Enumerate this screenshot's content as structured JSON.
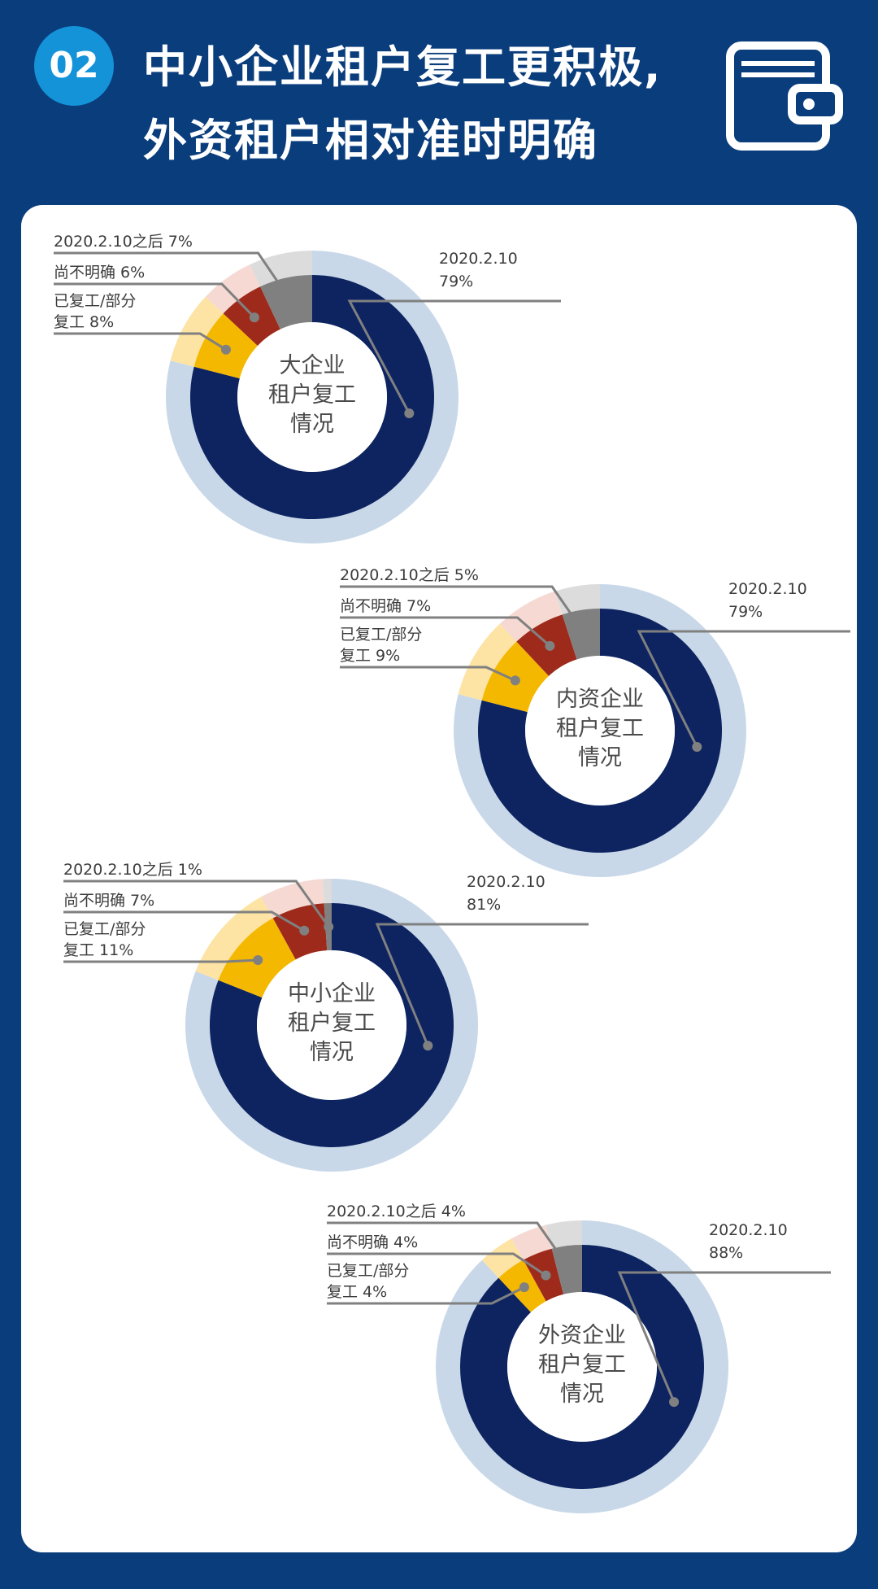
{
  "header": {
    "badge": "02",
    "title_line1": "中小企业租户复工更积极,",
    "title_line2": "外资租户相对准时明确",
    "icon": "wallet-icon"
  },
  "colors": {
    "background": "#0a3d7c",
    "badge": "#1493d9",
    "outer_ring": "#c8d8e8",
    "on_time": "#0d2461",
    "back_to_work": "#f5b800",
    "unclear": "#9e2a1c",
    "after": "#808080",
    "back_to_work_light": "#fde3a4",
    "unclear_light": "#f5d9d2",
    "after_light": "#dcdcdc",
    "leader_line": "#808080"
  },
  "chart_data": [
    {
      "type": "pie",
      "center_label": [
        "大企业",
        "租户复工",
        "情况"
      ],
      "categories": [
        "2020.2.10",
        "已复工/部分复工",
        "尚不明确",
        "2020.2.10之后"
      ],
      "values": [
        79,
        8,
        6,
        7
      ],
      "labels": {
        "main_name": "2020.2.10",
        "main_value": "79%",
        "work_line1": "已复工/部分",
        "work_line2": "复工 8%",
        "unclear": "尚不明确 6%",
        "after": "2020.2.10之后 7%"
      }
    },
    {
      "type": "pie",
      "center_label": [
        "内资企业",
        "租户复工",
        "情况"
      ],
      "categories": [
        "2020.2.10",
        "已复工/部分复工",
        "尚不明确",
        "2020.2.10之后"
      ],
      "values": [
        79,
        9,
        7,
        5
      ],
      "labels": {
        "main_name": "2020.2.10",
        "main_value": "79%",
        "work_line1": "已复工/部分",
        "work_line2": "复工 9%",
        "unclear": "尚不明确 7%",
        "after": "2020.2.10之后 5%"
      }
    },
    {
      "type": "pie",
      "center_label": [
        "中小企业",
        "租户复工",
        "情况"
      ],
      "categories": [
        "2020.2.10",
        "已复工/部分复工",
        "尚不明确",
        "2020.2.10之后"
      ],
      "values": [
        81,
        11,
        7,
        1
      ],
      "labels": {
        "main_name": "2020.2.10",
        "main_value": "81%",
        "work_line1": "已复工/部分",
        "work_line2": "复工 11%",
        "unclear": "尚不明确 7%",
        "after": "2020.2.10之后 1%"
      }
    },
    {
      "type": "pie",
      "center_label": [
        "外资企业",
        "租户复工",
        "情况"
      ],
      "categories": [
        "2020.2.10",
        "已复工/部分复工",
        "尚不明确",
        "2020.2.10之后"
      ],
      "values": [
        88,
        4,
        4,
        4
      ],
      "labels": {
        "main_name": "2020.2.10",
        "main_value": "88%",
        "work_line1": "已复工/部分",
        "work_line2": "复工 4%",
        "unclear": "尚不明确 4%",
        "after": "2020.2.10之后 4%"
      }
    }
  ]
}
